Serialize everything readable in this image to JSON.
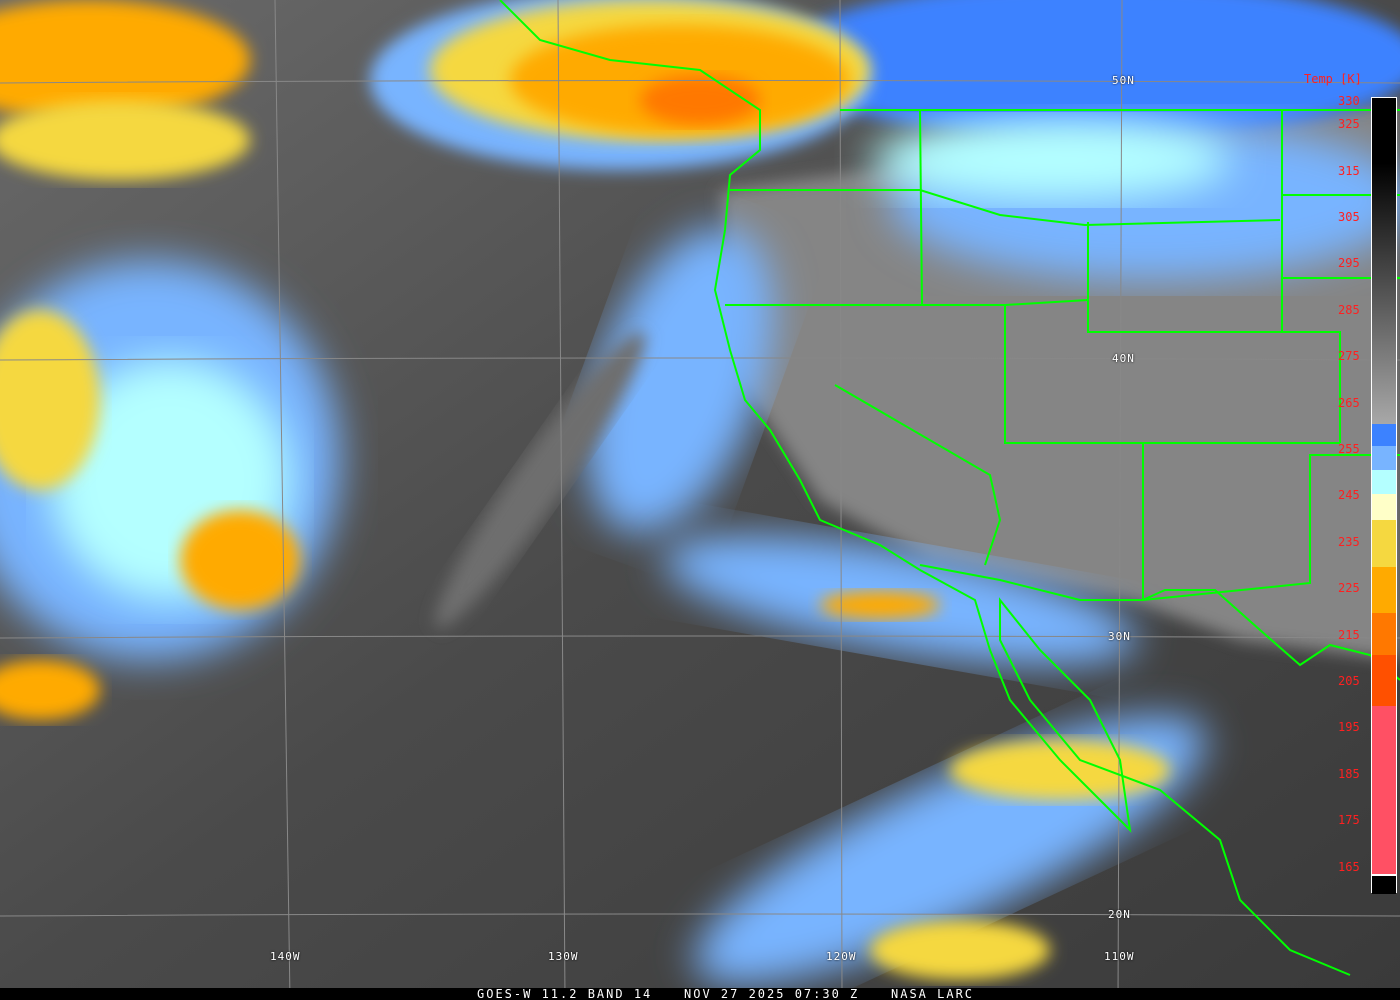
{
  "caption": {
    "product": "GOES-W 11.2 BAND 14",
    "datetime": "NOV 27 2025 07:30 Z",
    "source": "NASA LARC"
  },
  "colorbar": {
    "title": "Temp [K]",
    "ticks": [
      "330",
      "325",
      "315",
      "305",
      "295",
      "285",
      "275",
      "265",
      "255",
      "245",
      "235",
      "225",
      "215",
      "205",
      "195",
      "185",
      "175",
      "165"
    ],
    "colors": {
      "cold_pink": "#ff5064",
      "red_orange": "#ff5000",
      "dark_orange": "#ff7800",
      "orange": "#ffaa00",
      "yellow": "#f5d840",
      "pale_yellow": "#ffffc8",
      "cyan": "#b4ffff",
      "light_blue": "#78b4ff",
      "blue": "#3c82ff"
    }
  },
  "grid": {
    "latitudes": [
      "50N",
      "40N",
      "30N",
      "20N"
    ],
    "longitudes": [
      "140W",
      "130W",
      "120W",
      "110W"
    ]
  },
  "colors": {
    "boundaries": "#00ff00",
    "grid": "#888888",
    "label_red": "#ff2020"
  }
}
